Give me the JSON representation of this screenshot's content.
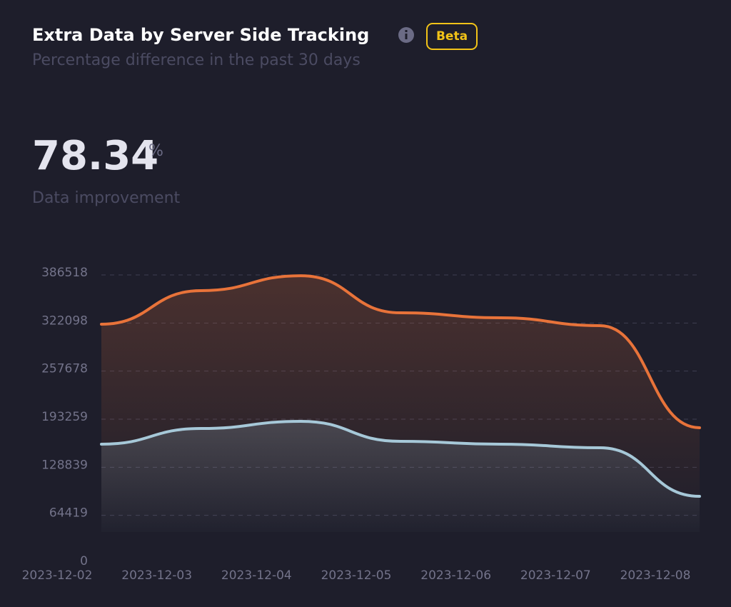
{
  "header": {
    "title": "Extra Data by Server Side Tracking",
    "badge": "Beta",
    "subtitle": "Percentage difference in the past 30 days"
  },
  "kpi": {
    "value": 78.34,
    "unit": "%",
    "label": "Data improvement"
  },
  "chart_data": {
    "type": "line",
    "categories": [
      "2023-12-02",
      "2023-12-03",
      "2023-12-04",
      "2023-12-05",
      "2023-12-06",
      "2023-12-07",
      "2023-12-08"
    ],
    "series": [
      {
        "color": "#e8733a",
        "values": [
          320500,
          365500,
          385500,
          335800,
          329100,
          318600,
          181800
        ]
      },
      {
        "color": "#a6c8d8",
        "values": [
          159800,
          180800,
          190400,
          163600,
          159800,
          155000,
          89900
        ]
      }
    ],
    "ylim": [
      0,
      386518
    ],
    "yticks": [
      0,
      64419,
      128839,
      193259,
      257678,
      322098,
      386518
    ],
    "grid": true,
    "area": true
  }
}
